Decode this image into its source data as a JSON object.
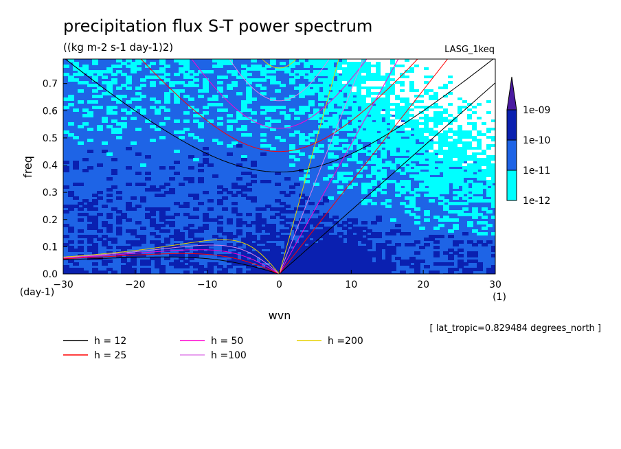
{
  "chart_data": {
    "type": "heatmap",
    "title": "precipitation flux S-T power spectrum",
    "subtitle": "((kg m-2 s-1 day-1)2)",
    "model_label": "LASG_1keq",
    "xlabel": "wvn",
    "ylabel": "freq",
    "x_unit_label": "(1)",
    "y_unit_label": "(day-1)",
    "xlim": [
      -30,
      30
    ],
    "ylim": [
      0,
      0.79
    ],
    "x_ticks": [
      "-30",
      "-20",
      "-10",
      "0",
      "10",
      "20",
      "30"
    ],
    "y_ticks": [
      "0.0",
      "0.1",
      "0.2",
      "0.3",
      "0.4",
      "0.5",
      "0.6",
      "0.7"
    ],
    "colorbar": {
      "labels": [
        "1e-09",
        "1e-10",
        "1e-11",
        "1e-12"
      ],
      "colors": [
        "#4a1aa0",
        "#0a20b0",
        "#1e64e6",
        "#00ffff"
      ]
    },
    "annotation": "[ lat_tropic=0.829484 degrees_north ]",
    "dispersion_curves": [
      {
        "name": "h = 12",
        "h": 12,
        "color": "#000000"
      },
      {
        "name": "h = 25",
        "h": 25,
        "color": "#ff0000"
      },
      {
        "name": "h = 50",
        "h": 50,
        "color": "#ff00d0"
      },
      {
        "name": "h =100",
        "h": 100,
        "color": "#e080e8"
      },
      {
        "name": "h =200",
        "h": 200,
        "color": "#e6d000"
      }
    ]
  }
}
